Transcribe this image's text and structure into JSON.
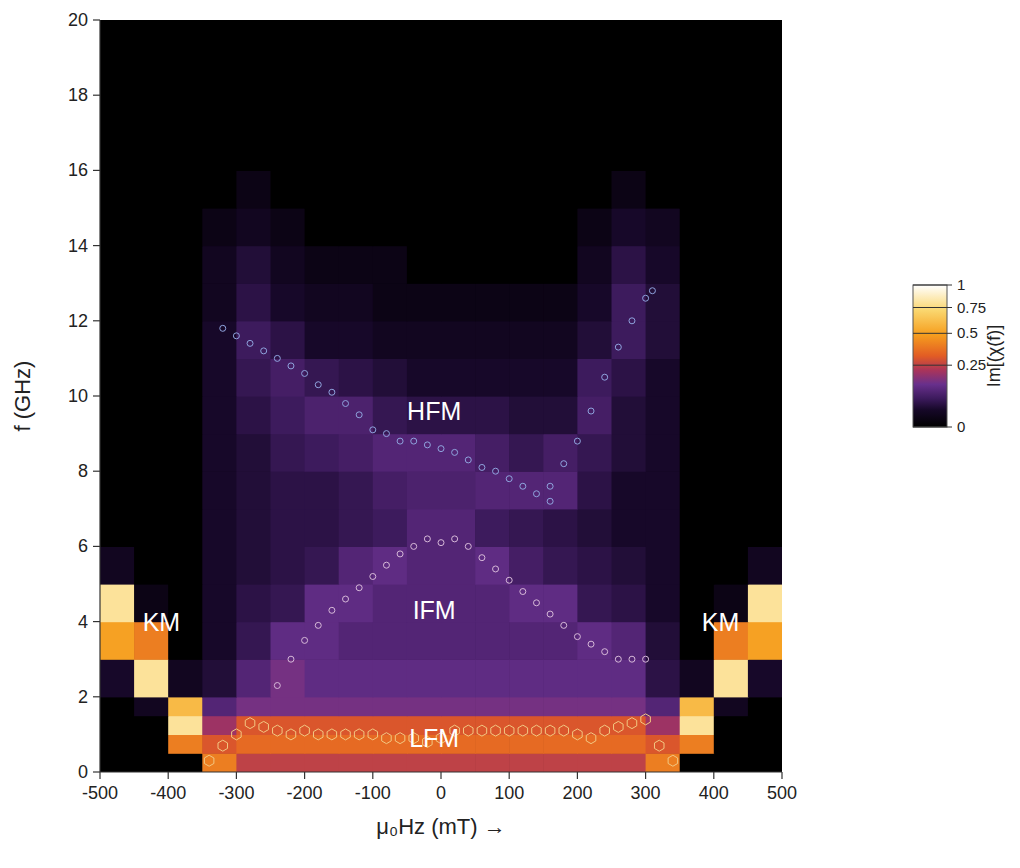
{
  "chart_data": {
    "type": "heatmap",
    "x_label": "μ₀Hz (mT) →",
    "y_label": "f (GHz)",
    "xlim": [
      -500,
      500
    ],
    "ylim": [
      0,
      20
    ],
    "xticks": [
      -500,
      -400,
      -300,
      -200,
      -100,
      0,
      100,
      200,
      300,
      400,
      500
    ],
    "yticks": [
      0,
      2,
      4,
      6,
      8,
      10,
      12,
      14,
      16,
      18,
      20
    ],
    "x_edges": [
      -500,
      -450,
      -400,
      -350,
      -300,
      -250,
      -200,
      -150,
      -100,
      -50,
      0,
      50,
      100,
      150,
      200,
      250,
      300,
      350,
      400,
      450,
      500
    ],
    "y_edges": [
      0,
      0.5,
      1,
      1.5,
      2,
      3,
      4,
      5,
      6,
      7,
      8,
      9,
      10,
      11,
      12,
      13,
      14,
      15,
      16,
      20
    ],
    "cells": [
      [
        0,
        0,
        0,
        0.4,
        0.25,
        0.25,
        0.25,
        0.25,
        0.25,
        0.25,
        0.25,
        0.25,
        0.25,
        0.25,
        0.25,
        0.25,
        0.4,
        0,
        0,
        0
      ],
      [
        0,
        0,
        0.4,
        0.3,
        0.35,
        0.35,
        0.35,
        0.35,
        0.35,
        0.35,
        0.35,
        0.35,
        0.35,
        0.35,
        0.35,
        0.35,
        0.3,
        0.4,
        0,
        0
      ],
      [
        0,
        0,
        0.8,
        0.2,
        0.3,
        0.3,
        0.3,
        0.3,
        0.3,
        0.3,
        0.3,
        0.3,
        0.3,
        0.3,
        0.3,
        0.3,
        0.2,
        0.8,
        0,
        0
      ],
      [
        0,
        0.02,
        0.6,
        0.1,
        0.15,
        0.15,
        0.15,
        0.15,
        0.15,
        0.15,
        0.15,
        0.15,
        0.15,
        0.15,
        0.15,
        0.15,
        0.1,
        0.6,
        0.02,
        0
      ],
      [
        0.03,
        0.8,
        0.02,
        0.04,
        0.1,
        0.15,
        0.12,
        0.12,
        0.12,
        0.12,
        0.12,
        0.12,
        0.12,
        0.12,
        0.12,
        0.12,
        0.05,
        0.02,
        0.8,
        0.03
      ],
      [
        0.5,
        0.4,
        0,
        0.03,
        0.06,
        0.12,
        0.12,
        0.1,
        0.1,
        0.1,
        0.1,
        0.1,
        0.1,
        0.1,
        0.12,
        0.1,
        0.04,
        0,
        0.4,
        0.5
      ],
      [
        0.8,
        0.01,
        0,
        0.03,
        0.05,
        0.06,
        0.12,
        0.12,
        0.1,
        0.1,
        0.1,
        0.1,
        0.12,
        0.12,
        0.06,
        0.05,
        0.03,
        0,
        0.01,
        0.8
      ],
      [
        0.02,
        0,
        0,
        0.03,
        0.04,
        0.05,
        0.06,
        0.1,
        0.12,
        0.1,
        0.1,
        0.12,
        0.08,
        0.06,
        0.05,
        0.04,
        0.03,
        0,
        0,
        0.02
      ],
      [
        0,
        0,
        0,
        0.03,
        0.04,
        0.05,
        0.05,
        0.06,
        0.07,
        0.1,
        0.1,
        0.07,
        0.06,
        0.05,
        0.04,
        0.03,
        0.03,
        0,
        0,
        0
      ],
      [
        0,
        0,
        0,
        0.03,
        0.04,
        0.05,
        0.05,
        0.06,
        0.08,
        0.09,
        0.09,
        0.1,
        0.1,
        0.1,
        0.05,
        0.03,
        0.03,
        0,
        0,
        0
      ],
      [
        0,
        0,
        0,
        0.03,
        0.04,
        0.06,
        0.07,
        0.08,
        0.1,
        0.1,
        0.1,
        0.08,
        0.06,
        0.08,
        0.06,
        0.04,
        0.03,
        0,
        0,
        0
      ],
      [
        0,
        0,
        0,
        0.03,
        0.05,
        0.07,
        0.09,
        0.09,
        0.06,
        0.05,
        0.05,
        0.05,
        0.04,
        0.04,
        0.08,
        0.04,
        0.03,
        0,
        0,
        0
      ],
      [
        0,
        0,
        0,
        0.03,
        0.06,
        0.08,
        0.06,
        0.05,
        0.04,
        0.03,
        0.03,
        0.03,
        0.03,
        0.03,
        0.07,
        0.05,
        0.03,
        0,
        0,
        0
      ],
      [
        0,
        0,
        0,
        0.03,
        0.07,
        0.05,
        0.03,
        0.03,
        0.02,
        0.02,
        0.02,
        0.02,
        0.02,
        0.02,
        0.04,
        0.07,
        0.04,
        0,
        0,
        0
      ],
      [
        0,
        0,
        0,
        0.02,
        0.05,
        0.03,
        0.02,
        0.02,
        0.01,
        0.01,
        0.01,
        0.01,
        0.01,
        0.01,
        0.03,
        0.07,
        0.04,
        0,
        0,
        0
      ],
      [
        0,
        0,
        0,
        0.02,
        0.04,
        0.02,
        0.01,
        0.01,
        0.01,
        0,
        0,
        0,
        0,
        0,
        0.02,
        0.05,
        0.03,
        0,
        0,
        0
      ],
      [
        0,
        0,
        0,
        0.01,
        0.02,
        0.01,
        0,
        0,
        0,
        0,
        0,
        0,
        0,
        0,
        0.01,
        0.03,
        0.02,
        0,
        0,
        0
      ],
      [
        0,
        0,
        0,
        0,
        0.01,
        0,
        0,
        0,
        0,
        0,
        0,
        0,
        0,
        0,
        0,
        0.01,
        0,
        0,
        0,
        0
      ],
      [
        0,
        0,
        0,
        0,
        0,
        0,
        0,
        0,
        0,
        0,
        0,
        0,
        0,
        0,
        0,
        0,
        0,
        0,
        0,
        0
      ]
    ],
    "colorbar": {
      "label": "Im[(χ(f)]",
      "range": [
        0,
        1
      ],
      "ticks": [
        0,
        0.25,
        0.5,
        0.75,
        1
      ]
    },
    "series": [
      {
        "type": "scatter",
        "marker": "circle",
        "color": "#8fa3dd",
        "x": [
          -320,
          -300,
          -280,
          -260,
          -240,
          -220,
          -200,
          -180,
          -160,
          -140,
          -120,
          -100,
          -80,
          -60,
          -40,
          -20,
          0,
          20,
          40,
          60,
          80,
          100,
          120,
          140,
          160
        ],
        "values": [
          11.8,
          11.6,
          11.4,
          11.2,
          11.0,
          10.8,
          10.6,
          10.3,
          10.1,
          9.8,
          9.5,
          9.1,
          9.0,
          8.8,
          8.8,
          8.7,
          8.6,
          8.5,
          8.3,
          8.1,
          8.0,
          7.8,
          7.6,
          7.4,
          7.2
        ]
      },
      {
        "type": "scatter",
        "marker": "circle",
        "color": "#8fa3dd",
        "x": [
          160,
          180,
          200,
          220,
          240,
          260,
          280,
          300,
          310
        ],
        "values": [
          7.6,
          8.2,
          8.8,
          9.6,
          10.5,
          11.3,
          12.0,
          12.6,
          12.8
        ]
      },
      {
        "type": "scatter",
        "marker": "circle",
        "color": "#d6b8d8",
        "x": [
          -240,
          -220,
          -200,
          -180,
          -160,
          -140,
          -120,
          -100,
          -80,
          -60,
          -40,
          -20,
          0,
          20,
          40,
          60,
          80,
          100,
          120,
          140,
          160,
          180,
          200,
          220,
          240,
          260,
          280,
          300
        ],
        "values": [
          2.3,
          3.0,
          3.5,
          3.9,
          4.3,
          4.6,
          4.9,
          5.2,
          5.5,
          5.8,
          6.0,
          6.2,
          6.1,
          6.2,
          6.0,
          5.7,
          5.4,
          5.1,
          4.8,
          4.5,
          4.2,
          3.9,
          3.6,
          3.4,
          3.2,
          3.0,
          3.0,
          3.0
        ]
      },
      {
        "type": "scatter",
        "marker": "hexagon",
        "color": "#f2c882",
        "x": [
          -340,
          -320,
          -300,
          -280,
          -260,
          -240,
          -220,
          -200,
          -180,
          -160,
          -140,
          -120,
          -100,
          -80,
          -60,
          -40,
          -20,
          0,
          20,
          40,
          60,
          80,
          100,
          120,
          140,
          160,
          180,
          200,
          220,
          240,
          260,
          280,
          300,
          320,
          340
        ],
        "values": [
          0.3,
          0.7,
          1.0,
          1.3,
          1.2,
          1.1,
          1.0,
          1.1,
          1.0,
          1.0,
          1.0,
          1.0,
          1.0,
          0.9,
          0.9,
          0.9,
          0.8,
          0.9,
          1.1,
          1.1,
          1.1,
          1.1,
          1.1,
          1.1,
          1.1,
          1.1,
          1.1,
          1.0,
          0.9,
          1.1,
          1.2,
          1.3,
          1.4,
          0.7,
          0.3
        ]
      }
    ],
    "annotations": [
      {
        "text": "HFM",
        "x": -10,
        "y": 9.6
      },
      {
        "text": "IFM",
        "x": -10,
        "y": 4.3
      },
      {
        "text": "LFM",
        "x": -10,
        "y": 0.9
      },
      {
        "text": "KM",
        "x": -410,
        "y": 4.0
      },
      {
        "text": "KM",
        "x": 410,
        "y": 4.0
      }
    ]
  }
}
